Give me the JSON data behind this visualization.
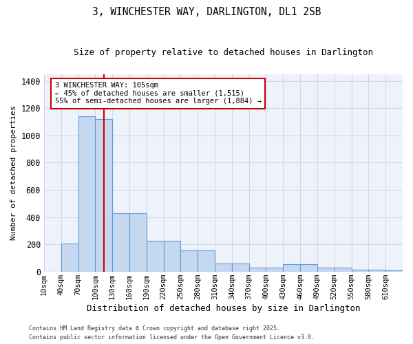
{
  "title1": "3, WINCHESTER WAY, DARLINGTON, DL1 2SB",
  "title2": "Size of property relative to detached houses in Darlington",
  "xlabel": "Distribution of detached houses by size in Darlington",
  "ylabel": "Number of detached properties",
  "bin_edges": [
    10,
    40,
    70,
    100,
    130,
    160,
    190,
    220,
    250,
    280,
    310,
    340,
    370,
    400,
    430,
    460,
    490,
    520,
    550,
    580,
    610
  ],
  "bin_labels": [
    "10sqm",
    "40sqm",
    "70sqm",
    "100sqm",
    "130sqm",
    "160sqm",
    "190sqm",
    "220sqm",
    "250sqm",
    "280sqm",
    "310sqm",
    "340sqm",
    "370sqm",
    "400sqm",
    "430sqm",
    "460sqm",
    "490sqm",
    "520sqm",
    "550sqm",
    "580sqm",
    "610sqm"
  ],
  "values": [
    0,
    205,
    1140,
    1120,
    430,
    430,
    225,
    225,
    155,
    155,
    60,
    60,
    30,
    30,
    55,
    55,
    30,
    30,
    15,
    15,
    10
  ],
  "bar_color": "#c5d8f0",
  "bar_edge_color": "#5b9bd5",
  "grid_color": "#d0d8e8",
  "bg_color": "#eef2fa",
  "vline_color": "#cc0000",
  "vline_pos": 3.5,
  "annotation_text": "3 WINCHESTER WAY: 105sqm\n← 45% of detached houses are smaller (1,515)\n55% of semi-detached houses are larger (1,884) →",
  "annotation_box_color": "#cc0000",
  "ylim": [
    0,
    1450
  ],
  "yticks": [
    0,
    200,
    400,
    600,
    800,
    1000,
    1200,
    1400
  ],
  "footnote1": "Contains HM Land Registry data © Crown copyright and database right 2025.",
  "footnote2": "Contains public sector information licensed under the Open Government Licence v3.0."
}
